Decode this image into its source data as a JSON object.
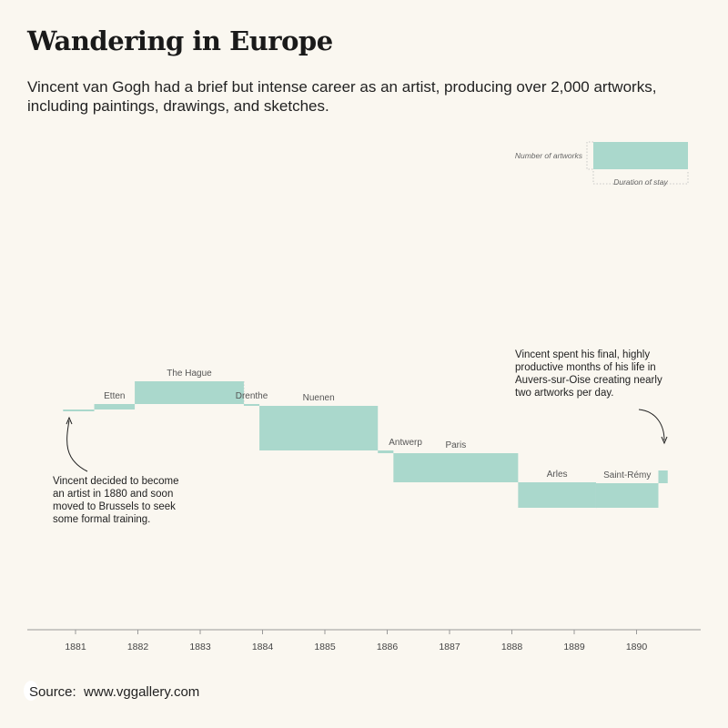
{
  "header": {
    "title": "Wandering in Europe",
    "subtitle": "Vincent van Gogh had a brief but intense career as an artist, producing over 2,000 artworks, including paintings, drawings, and sketches."
  },
  "source": {
    "label": "Source:",
    "url": "www.vggallery.com"
  },
  "legend": {
    "height_label": "Number of artworks",
    "width_label": "Duration of stay"
  },
  "annotations": {
    "start": [
      "Vincent decided to become",
      "an artist in 1880 and soon",
      "moved to Brussels to seek",
      "some formal training."
    ],
    "end": [
      "Vincent spent his final, highly",
      "productive months of his life in",
      "Auvers-sur-Oise creating nearly",
      "two artworks per day."
    ]
  },
  "colors": {
    "bar": "#aad8cc",
    "background": "#faf7f0"
  },
  "chart_data": {
    "type": "timeline-waterfall",
    "title": "Wandering in Europe",
    "xlabel": "",
    "ylabel": "",
    "x_ticks": [
      "1881",
      "1882",
      "1883",
      "1884",
      "1885",
      "1886",
      "1887",
      "1888",
      "1889",
      "1890"
    ],
    "xlim": [
      1880.6,
      1890.9
    ],
    "ylim": [
      0,
      2100
    ],
    "grid": false,
    "stays": [
      {
        "place": "Brussels",
        "start": 1880.8,
        "end": 1881.3,
        "artworks": 10,
        "show_label": false
      },
      {
        "place": "Etten",
        "start": 1881.3,
        "end": 1881.95,
        "artworks": 60,
        "show_label": true
      },
      {
        "place": "The Hague",
        "start": 1881.95,
        "end": 1883.7,
        "artworks": 250,
        "show_label": true
      },
      {
        "place": "Drenthe",
        "start": 1883.7,
        "end": 1883.95,
        "artworks": 20,
        "show_label": true
      },
      {
        "place": "Nuenen",
        "start": 1883.95,
        "end": 1885.85,
        "artworks": 490,
        "show_label": true
      },
      {
        "place": "Antwerp",
        "start": 1885.85,
        "end": 1886.1,
        "artworks": 30,
        "show_label": true
      },
      {
        "place": "Paris",
        "start": 1886.1,
        "end": 1888.1,
        "artworks": 320,
        "show_label": true
      },
      {
        "place": "Arles",
        "start": 1888.1,
        "end": 1889.35,
        "artworks": 280,
        "show_label": true
      },
      {
        "place": "Saint-Rémy",
        "start": 1889.35,
        "end": 1890.35,
        "artworks": 270,
        "show_label": true
      },
      {
        "place": "Auvers-sur-Oise",
        "start": 1890.35,
        "end": 1890.5,
        "artworks": 140,
        "show_label": false
      }
    ]
  }
}
